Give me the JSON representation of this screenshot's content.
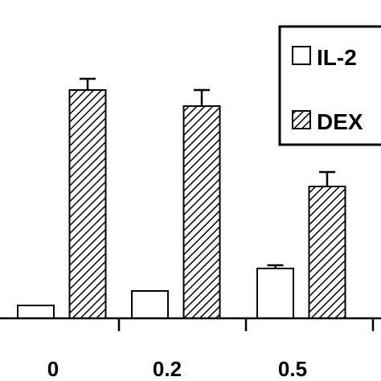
{
  "chart_data": {
    "type": "bar",
    "categories": [
      "0",
      "0.2",
      "0.5"
    ],
    "series": [
      {
        "name": "IL-2",
        "values": [
          4,
          8.5,
          15.5
        ],
        "error": [
          0,
          0,
          1
        ],
        "pattern": "open",
        "color": "#ffffff"
      },
      {
        "name": "DEX",
        "values": [
          71,
          66,
          41
        ],
        "error": [
          3.5,
          5,
          4.5
        ],
        "pattern": "hatched",
        "color": "#000000"
      }
    ],
    "ylim": [
      0,
      100
    ],
    "grid": false,
    "legend": "top-right"
  }
}
